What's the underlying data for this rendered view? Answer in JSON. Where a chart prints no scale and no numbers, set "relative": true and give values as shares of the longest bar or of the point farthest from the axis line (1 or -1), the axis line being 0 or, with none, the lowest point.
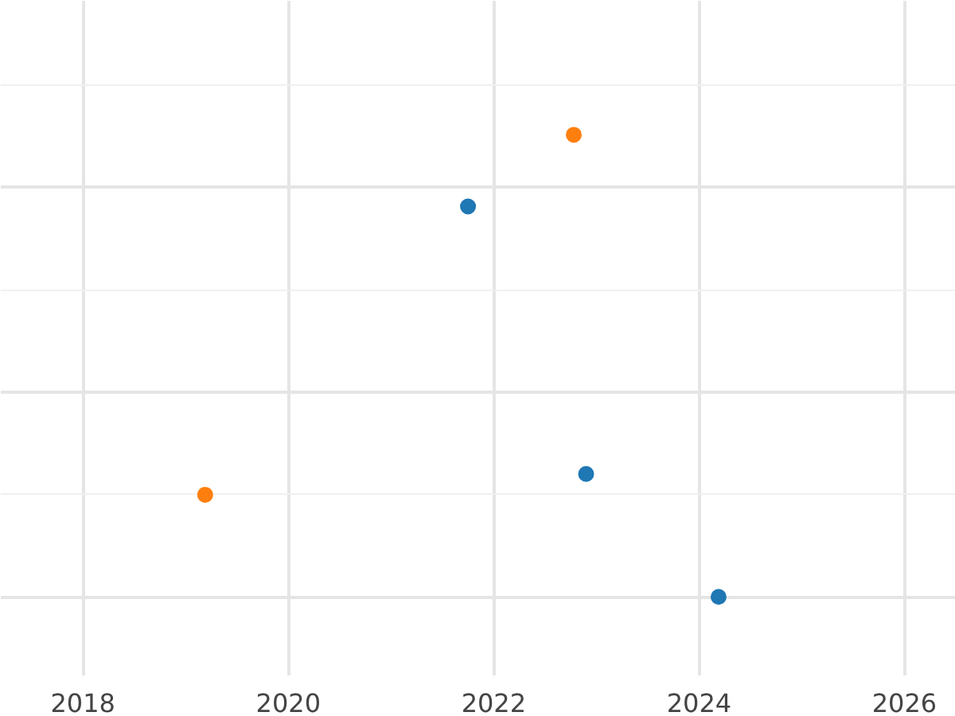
{
  "chart_data": {
    "type": "scatter",
    "relative": true,
    "xlim": [
      2017.2,
      2026.5
    ],
    "xticks": [
      2018,
      2020,
      2022,
      2024,
      2026
    ],
    "grid": true,
    "tick_labels": "x",
    "marker": "circle",
    "series": [
      {
        "color": "#1f77b4",
        "x": [
          2021.75,
          2022.9,
          2024.19
        ],
        "values": [
          0.845,
          0.266,
          0
        ]
      },
      {
        "color": "#ff7f0e",
        "x": [
          2019.19,
          2022.78
        ],
        "values": [
          0.221,
          1
        ]
      }
    ]
  }
}
